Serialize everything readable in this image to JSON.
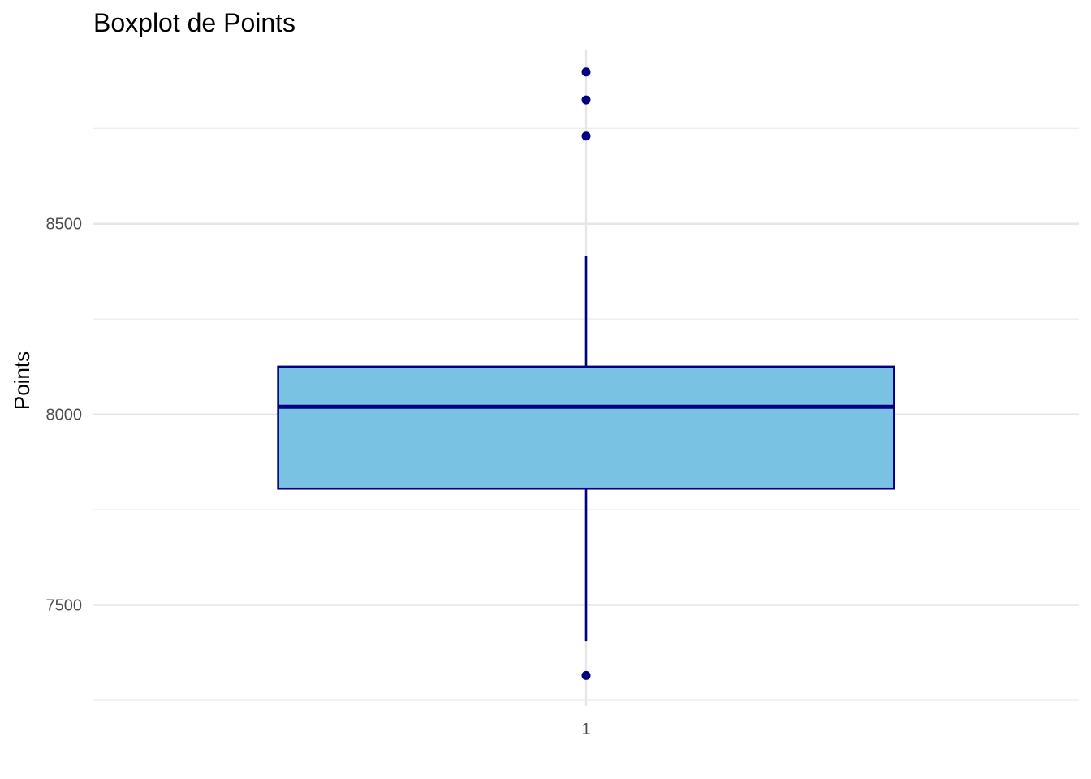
{
  "chart_data": {
    "type": "boxplot",
    "title": "Boxplot de Points",
    "xlabel": "",
    "ylabel": "Points",
    "categories": [
      "1"
    ],
    "y_ticks": [
      7500,
      8000,
      8500
    ],
    "ylim": [
      7235,
      8955
    ],
    "grid": true,
    "boxes": [
      {
        "category": "1",
        "lower_whisker": 7405,
        "q1": 7805,
        "median": 8020,
        "q3": 8125,
        "upper_whisker": 8415,
        "outliers": [
          7315,
          8730,
          8825,
          8898
        ]
      }
    ],
    "colors": {
      "box_fill": "#7AC2E4",
      "outline": "#000080",
      "outlier": "#000080",
      "grid": "#e6e6e6"
    }
  }
}
